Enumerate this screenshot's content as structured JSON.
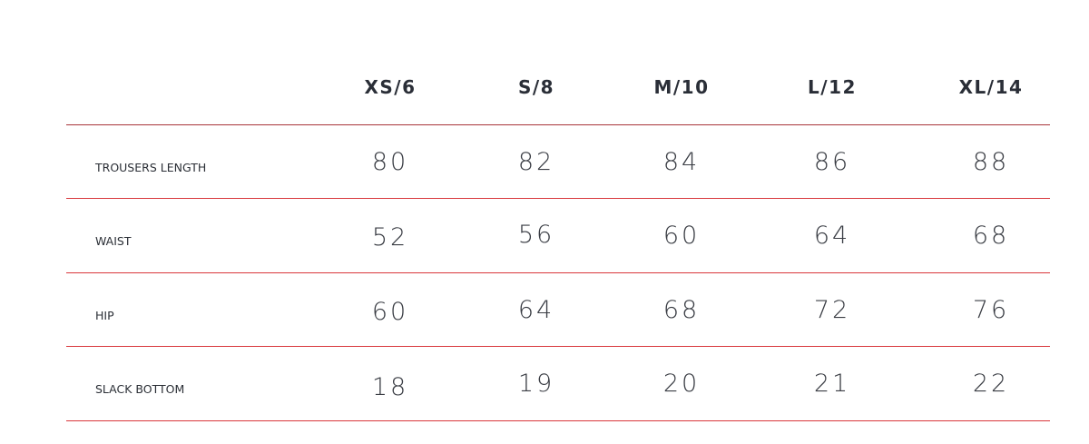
{
  "table": {
    "columns": [
      "XS/6",
      "S/8",
      "M/10",
      "L/12",
      "XL/14"
    ],
    "rows": [
      {
        "label": "TROUSERS LENGTH",
        "values": [
          "80",
          "82",
          "84",
          "86",
          "88"
        ]
      },
      {
        "label": "WAIST",
        "values": [
          "52",
          "56",
          "60",
          "64",
          "68"
        ]
      },
      {
        "label": "HIP",
        "values": [
          "60",
          "64",
          "68",
          "72",
          "76"
        ]
      },
      {
        "label": "SLACK BOTTOM",
        "values": [
          "18",
          "19",
          "20",
          "21",
          "22"
        ]
      }
    ],
    "line_color": "#d9373c"
  }
}
